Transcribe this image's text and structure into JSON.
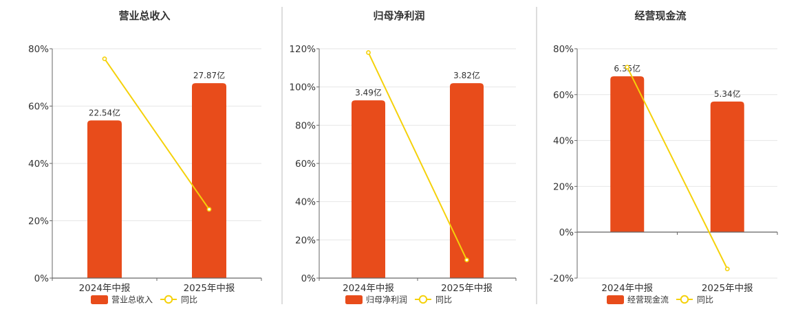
{
  "colors": {
    "bar": "#E84C1B",
    "line": "#F5D10A",
    "grid": "#E6E6E6",
    "axis": "#666666",
    "divider": "#BBBBBB",
    "text": "#333333"
  },
  "chart_data": [
    {
      "type": "bar",
      "title": "营业总收入",
      "categories": [
        "2024年中报",
        "2025年中报"
      ],
      "ylim": [
        0,
        80
      ],
      "yticks": [
        "0%",
        "20%",
        "40%",
        "60%",
        "80%"
      ],
      "ytick_values": [
        0,
        20,
        40,
        60,
        80
      ],
      "series": [
        {
          "name": "营业总收入",
          "kind": "bar",
          "values": [
            55,
            68
          ],
          "labels": [
            "22.54亿",
            "27.87亿"
          ]
        },
        {
          "name": "同比",
          "kind": "line",
          "values": [
            76.5,
            24
          ]
        }
      ],
      "legend": "bottom-center",
      "grid": true
    },
    {
      "type": "bar",
      "title": "归母净利润",
      "categories": [
        "2024年中报",
        "2025年中报"
      ],
      "ylim": [
        0,
        120
      ],
      "yticks": [
        "0%",
        "20%",
        "40%",
        "60%",
        "80%",
        "100%",
        "120%"
      ],
      "ytick_values": [
        0,
        20,
        40,
        60,
        80,
        100,
        120
      ],
      "series": [
        {
          "name": "归母净利润",
          "kind": "bar",
          "values": [
            93,
            102
          ],
          "labels": [
            "3.49亿",
            "3.82亿"
          ]
        },
        {
          "name": "同比",
          "kind": "line",
          "values": [
            118,
            9.5
          ]
        }
      ],
      "legend": "bottom-center",
      "grid": true
    },
    {
      "type": "bar",
      "title": "经营现金流",
      "categories": [
        "2024年中报",
        "2025年中报"
      ],
      "ylim": [
        -20,
        80
      ],
      "yticks": [
        "-20%",
        "0%",
        "20%",
        "40%",
        "60%",
        "80%"
      ],
      "ytick_values": [
        -20,
        0,
        20,
        40,
        60,
        80
      ],
      "series": [
        {
          "name": "经营现金流",
          "kind": "bar",
          "values": [
            68,
            57
          ],
          "labels": [
            "6.35亿",
            "5.34亿"
          ]
        },
        {
          "name": "同比",
          "kind": "line",
          "values": [
            72,
            -16
          ]
        }
      ],
      "legend": "bottom-center",
      "grid": true
    }
  ]
}
